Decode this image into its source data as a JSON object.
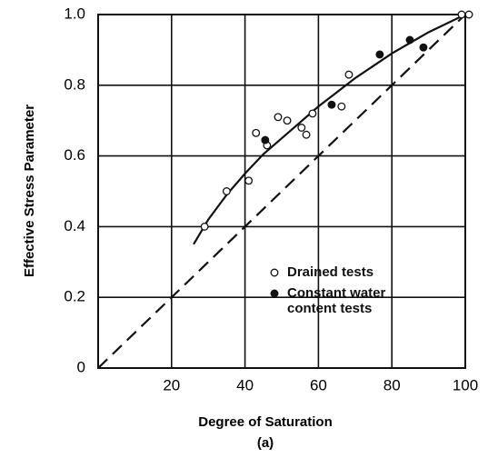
{
  "chart_data": {
    "type": "scatter",
    "xlabel": "Degree of Saturation",
    "ylabel": "Effective Stress Parameter",
    "caption": "(a)",
    "xlim": [
      0,
      100
    ],
    "ylim": [
      0,
      1
    ],
    "xticks": [
      20,
      40,
      60,
      80,
      100
    ],
    "yticks": [
      0,
      0.2,
      0.4,
      0.6,
      0.8,
      {
        "value": 1,
        "label": "1.0"
      }
    ],
    "grid": true,
    "legend": "lower right",
    "series": [
      {
        "name": "Drained tests",
        "marker": "open",
        "color": "#111111",
        "x": [
          29,
          35,
          41,
          43,
          46,
          49,
          51.5,
          55.4,
          56.7,
          58.4,
          66.3,
          68.3,
          99,
          101
        ],
        "values": [
          0.4,
          0.5,
          0.53,
          0.665,
          0.63,
          0.71,
          0.7,
          0.68,
          0.66,
          0.72,
          0.74,
          0.83,
          1.0,
          1.0
        ]
      },
      {
        "name": "Constant water content tests",
        "marker": "filled",
        "color": "#111111",
        "x": [
          45.5,
          63.6,
          76.7,
          84.9,
          88.6
        ],
        "values": [
          0.645,
          0.745,
          0.887,
          0.928,
          0.907
        ]
      }
    ],
    "curves": [
      {
        "dashed": false,
        "color": "#111111",
        "x": [
          26,
          30,
          35,
          40,
          45,
          50,
          55,
          60,
          65,
          70,
          75,
          80,
          85,
          90,
          95,
          100
        ],
        "values": [
          0.35,
          0.42,
          0.49,
          0.55,
          0.605,
          0.65,
          0.695,
          0.74,
          0.78,
          0.82,
          0.855,
          0.89,
          0.92,
          0.95,
          0.975,
          1.0
        ]
      },
      {
        "dashed": true,
        "color": "#111111",
        "x": [
          0,
          100
        ],
        "values": [
          0,
          1
        ]
      }
    ]
  }
}
